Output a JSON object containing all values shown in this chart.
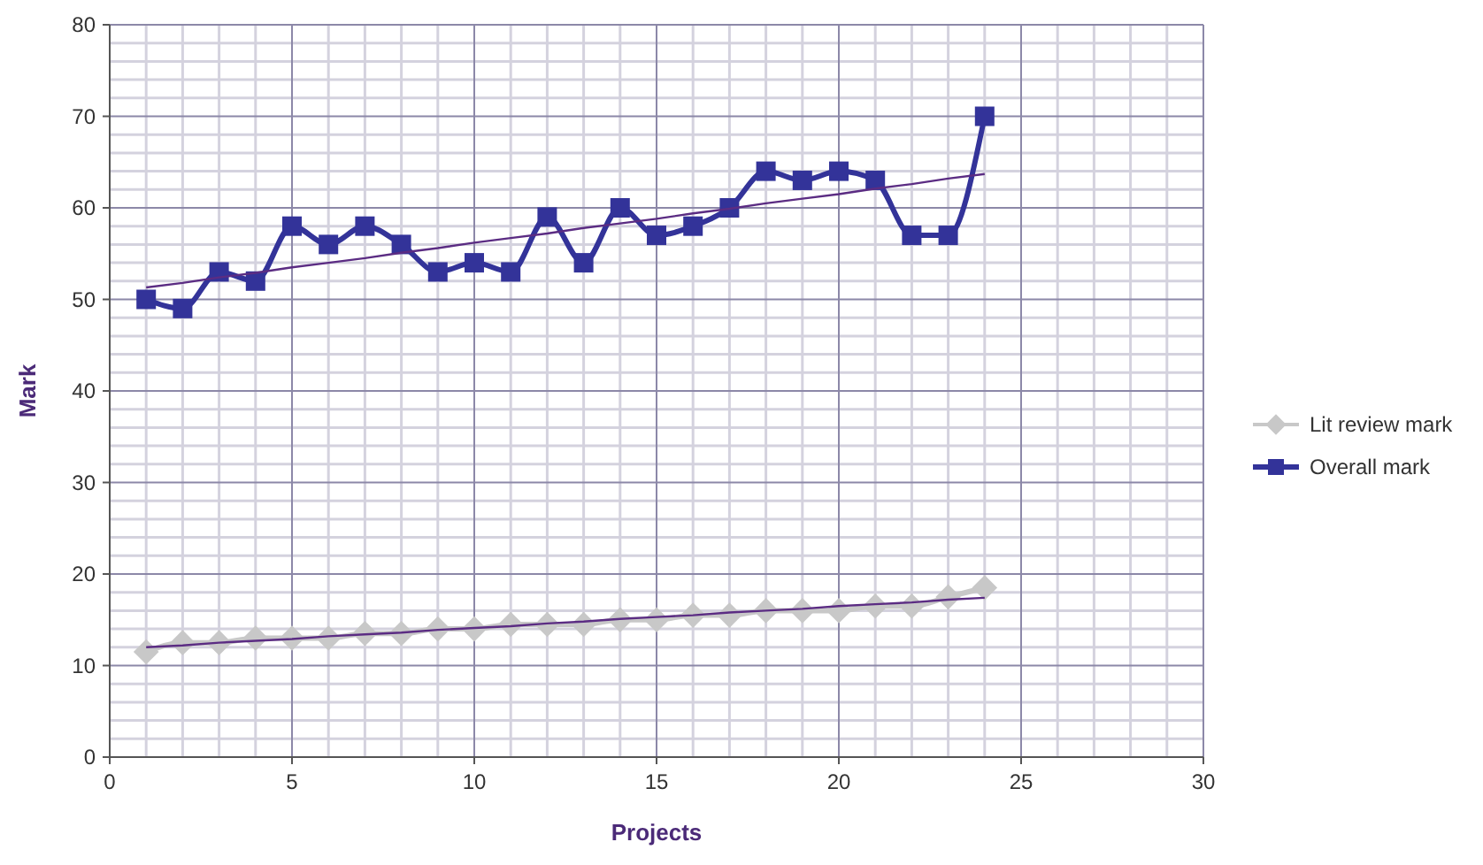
{
  "chart_data": {
    "type": "line",
    "xlabel": "Projects",
    "ylabel": "Mark",
    "x": [
      1,
      2,
      3,
      4,
      5,
      6,
      7,
      8,
      9,
      10,
      11,
      12,
      13,
      14,
      15,
      16,
      17,
      18,
      19,
      20,
      21,
      22,
      23,
      24
    ],
    "series": [
      {
        "name": "Lit review mark",
        "color": "#c8c8c8",
        "marker": "diamond",
        "values": [
          11.5,
          12.5,
          12.5,
          13,
          13,
          13,
          13.5,
          13.5,
          14,
          14,
          14.5,
          14.5,
          14.5,
          15,
          15,
          15.5,
          15.5,
          16,
          16,
          16,
          16.5,
          16.5,
          17.5,
          18.5
        ]
      },
      {
        "name": "Overall mark",
        "color": "#333399",
        "marker": "square",
        "values": [
          50,
          49,
          53,
          52,
          58,
          56,
          58,
          56,
          53,
          54,
          53,
          59,
          54,
          60,
          57,
          58,
          60,
          64,
          63,
          64,
          63,
          57,
          57,
          70
        ]
      },
      {
        "type": "line",
        "color": "#5b2c83",
        "marker": "none",
        "values": [
          51.3,
          51.8,
          52.4,
          52.9,
          53.5,
          54.0,
          54.5,
          55.1,
          55.6,
          56.2,
          56.7,
          57.2,
          57.8,
          58.3,
          58.8,
          59.4,
          59.9,
          60.5,
          61.0,
          61.5,
          62.1,
          62.6,
          63.2,
          63.7
        ]
      },
      {
        "type": "line",
        "color": "#5b2c83",
        "marker": "none",
        "values": [
          12.0,
          12.2,
          12.5,
          12.7,
          12.9,
          13.2,
          13.4,
          13.6,
          13.9,
          14.1,
          14.3,
          14.6,
          14.8,
          15.1,
          15.3,
          15.5,
          15.8,
          16.0,
          16.2,
          16.5,
          16.7,
          16.9,
          17.2,
          17.4
        ]
      }
    ],
    "xlim": [
      0,
      30
    ],
    "xticks": [
      0,
      5,
      10,
      15,
      20,
      25,
      30
    ],
    "ylim": [
      0,
      80
    ],
    "yticks": [
      0,
      10,
      20,
      30,
      40,
      50,
      60,
      70,
      80
    ],
    "grid": true,
    "legend": "right"
  }
}
